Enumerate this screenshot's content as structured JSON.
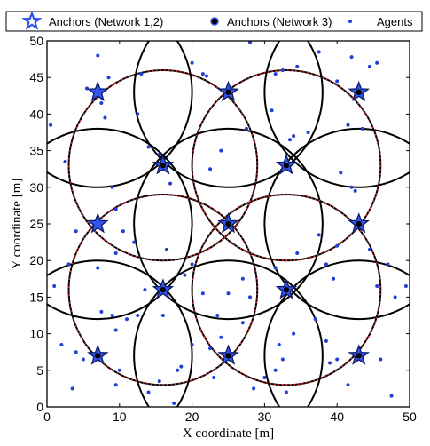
{
  "chart_data": {
    "type": "scatter",
    "xlabel": "X coordinate [m]",
    "ylabel": "Y coordinate [m]",
    "xlim": [
      0,
      50
    ],
    "ylim": [
      0,
      50
    ],
    "xticks": [
      "0",
      "10",
      "20",
      "30",
      "40",
      "50"
    ],
    "yticks": [
      "0",
      "5",
      "10",
      "15",
      "20",
      "25",
      "30",
      "35",
      "40",
      "45",
      "50"
    ],
    "grid": false,
    "legend_position": "top",
    "colors": {
      "anchor_fill": "#3355ee",
      "anchor_stroke": "#0a1a66",
      "agent": "#1f3fd6",
      "solid_circle": "#000000",
      "dotted_circle": "#e03030"
    },
    "legend": [
      {
        "label": "Anchors (Network 1,2)",
        "marker": "star"
      },
      {
        "label": "Anchors (Network 3)",
        "marker": "filled-circle"
      },
      {
        "label": "Agents",
        "marker": "dot"
      }
    ],
    "series": [
      {
        "name": "Anchors (Network 1,2)",
        "marker": "star",
        "points": [
          {
            "x": 7,
            "y": 43
          },
          {
            "x": 25,
            "y": 43
          },
          {
            "x": 43,
            "y": 43
          },
          {
            "x": 16,
            "y": 33
          },
          {
            "x": 33,
            "y": 33
          },
          {
            "x": 7,
            "y": 25
          },
          {
            "x": 25,
            "y": 25
          },
          {
            "x": 43,
            "y": 25
          },
          {
            "x": 16,
            "y": 16
          },
          {
            "x": 33,
            "y": 16
          },
          {
            "x": 7,
            "y": 7
          },
          {
            "x": 25,
            "y": 7
          },
          {
            "x": 43,
            "y": 7
          }
        ]
      },
      {
        "name": "Anchors (Network 3)",
        "marker": "filled-circle",
        "points": [
          {
            "x": 25,
            "y": 43
          },
          {
            "x": 43,
            "y": 43
          },
          {
            "x": 16,
            "y": 33
          },
          {
            "x": 33,
            "y": 33
          },
          {
            "x": 25,
            "y": 25
          },
          {
            "x": 43,
            "y": 25
          },
          {
            "x": 16,
            "y": 16
          },
          {
            "x": 33,
            "y": 16
          },
          {
            "x": 7,
            "y": 7
          },
          {
            "x": 25,
            "y": 7
          },
          {
            "x": 43,
            "y": 7
          }
        ]
      },
      {
        "name": "Agents",
        "marker": "dot",
        "points": [
          {
            "x": 0.5,
            "y": 38.5
          },
          {
            "x": 2.5,
            "y": 33.5
          },
          {
            "x": 5.5,
            "y": 43.5
          },
          {
            "x": 7,
            "y": 48
          },
          {
            "x": 7.5,
            "y": 41.5
          },
          {
            "x": 8,
            "y": 39.5
          },
          {
            "x": 8.5,
            "y": 45
          },
          {
            "x": 13,
            "y": 45.5
          },
          {
            "x": 12.5,
            "y": 40
          },
          {
            "x": 14,
            "y": 35.5
          },
          {
            "x": 15.5,
            "y": 34.5
          },
          {
            "x": 17,
            "y": 30.5
          },
          {
            "x": 20,
            "y": 47
          },
          {
            "x": 21.5,
            "y": 45.5
          },
          {
            "x": 22,
            "y": 45.2
          },
          {
            "x": 24,
            "y": 35
          },
          {
            "x": 22.5,
            "y": 32.5
          },
          {
            "x": 27.5,
            "y": 38
          },
          {
            "x": 28,
            "y": 49.8
          },
          {
            "x": 31,
            "y": 40.5
          },
          {
            "x": 33.5,
            "y": 36.5
          },
          {
            "x": 34,
            "y": 37
          },
          {
            "x": 36,
            "y": 37.5
          },
          {
            "x": 31.5,
            "y": 45.5
          },
          {
            "x": 32.5,
            "y": 46
          },
          {
            "x": 34.5,
            "y": 46.5
          },
          {
            "x": 37.5,
            "y": 48.5
          },
          {
            "x": 40,
            "y": 44.5
          },
          {
            "x": 42,
            "y": 47.8
          },
          {
            "x": 44.5,
            "y": 46.5
          },
          {
            "x": 45.5,
            "y": 47
          },
          {
            "x": 41.5,
            "y": 38.5
          },
          {
            "x": 43.5,
            "y": 38
          },
          {
            "x": 40.5,
            "y": 32
          },
          {
            "x": 42,
            "y": 30
          },
          {
            "x": 42.5,
            "y": 29.5
          },
          {
            "x": 9,
            "y": 30
          },
          {
            "x": 9.5,
            "y": 27
          },
          {
            "x": 4,
            "y": 24
          },
          {
            "x": 7,
            "y": 19
          },
          {
            "x": 3,
            "y": 19.5
          },
          {
            "x": 9.5,
            "y": 21
          },
          {
            "x": 12,
            "y": 22.5
          },
          {
            "x": 10.5,
            "y": 24
          },
          {
            "x": 20,
            "y": 19.5
          },
          {
            "x": 16.5,
            "y": 21.5
          },
          {
            "x": 19,
            "y": 18
          },
          {
            "x": 27,
            "y": 17.5
          },
          {
            "x": 25,
            "y": 15.5
          },
          {
            "x": 21.5,
            "y": 15.5
          },
          {
            "x": 23.5,
            "y": 12.5
          },
          {
            "x": 28,
            "y": 15
          },
          {
            "x": 31.5,
            "y": 19
          },
          {
            "x": 34.5,
            "y": 21
          },
          {
            "x": 37.5,
            "y": 23.5
          },
          {
            "x": 38.5,
            "y": 19.5
          },
          {
            "x": 40,
            "y": 22
          },
          {
            "x": 39.5,
            "y": 17.5
          },
          {
            "x": 44.5,
            "y": 21.5
          },
          {
            "x": 47,
            "y": 19.5
          },
          {
            "x": 49.5,
            "y": 16.5
          },
          {
            "x": 45.5,
            "y": 16.5
          },
          {
            "x": 48,
            "y": 15
          },
          {
            "x": 1,
            "y": 16.5
          },
          {
            "x": 7.5,
            "y": 13
          },
          {
            "x": 9,
            "y": 12.5
          },
          {
            "x": 11,
            "y": 12
          },
          {
            "x": 12.5,
            "y": 12.5
          },
          {
            "x": 13.5,
            "y": 16
          },
          {
            "x": 16,
            "y": 12.5
          },
          {
            "x": 9.5,
            "y": 10.5
          },
          {
            "x": 2,
            "y": 8.5
          },
          {
            "x": 4,
            "y": 7.5
          },
          {
            "x": 5,
            "y": 6.5
          },
          {
            "x": 7,
            "y": 7.5
          },
          {
            "x": 3.5,
            "y": 2.5
          },
          {
            "x": 10,
            "y": 5
          },
          {
            "x": 9.5,
            "y": 3
          },
          {
            "x": 15.5,
            "y": 3.5
          },
          {
            "x": 14,
            "y": 2
          },
          {
            "x": 17.5,
            "y": 0.5
          },
          {
            "x": 18,
            "y": 5
          },
          {
            "x": 18.5,
            "y": 5.5
          },
          {
            "x": 20,
            "y": 8.5
          },
          {
            "x": 22.5,
            "y": 8
          },
          {
            "x": 23,
            "y": 4
          },
          {
            "x": 24,
            "y": 9.5
          },
          {
            "x": 27,
            "y": 11.5
          },
          {
            "x": 28.5,
            "y": 2.5
          },
          {
            "x": 31.5,
            "y": 5
          },
          {
            "x": 32,
            "y": 8.5
          },
          {
            "x": 32.5,
            "y": 6.5
          },
          {
            "x": 34,
            "y": 10
          },
          {
            "x": 37,
            "y": 12
          },
          {
            "x": 38.5,
            "y": 9
          },
          {
            "x": 39,
            "y": 6
          },
          {
            "x": 40,
            "y": 6.5
          },
          {
            "x": 41.5,
            "y": 3
          },
          {
            "x": 46,
            "y": 6.5
          },
          {
            "x": 47.5,
            "y": 1.5
          },
          {
            "x": 33,
            "y": 2
          },
          {
            "x": 30,
            "y": 4
          }
        ]
      }
    ],
    "circles": [
      {
        "style": "solid",
        "radius": 13,
        "centers": [
          [
            7,
            43
          ],
          [
            25,
            43
          ],
          [
            43,
            43
          ],
          [
            16,
            33
          ],
          [
            33,
            33
          ],
          [
            7,
            25
          ],
          [
            25,
            25
          ],
          [
            43,
            25
          ],
          [
            16,
            16
          ],
          [
            33,
            16
          ],
          [
            7,
            7
          ],
          [
            25,
            7
          ],
          [
            43,
            7
          ]
        ]
      },
      {
        "style": "dotted",
        "radius": 13,
        "centers": [
          [
            16,
            33
          ],
          [
            33,
            33
          ],
          [
            16,
            16
          ],
          [
            33,
            16
          ]
        ]
      }
    ]
  }
}
